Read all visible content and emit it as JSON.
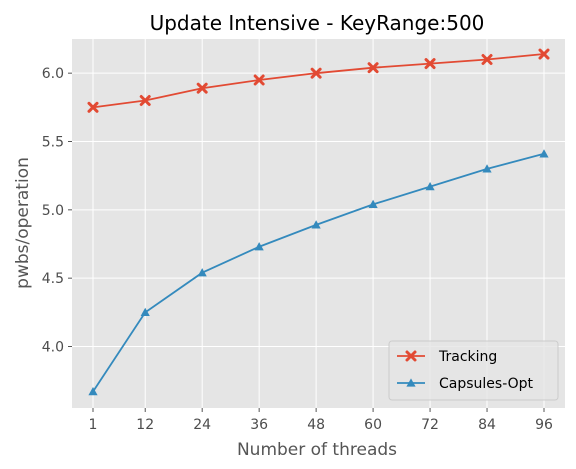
{
  "chart_data": {
    "type": "line",
    "title": "Update Intensive - KeyRange:500",
    "xlabel": "Number of threads",
    "ylabel": "pwbs/operation",
    "x": [
      1,
      12,
      24,
      36,
      48,
      60,
      72,
      84,
      96
    ],
    "x_ticks": [
      "1",
      "12",
      "24",
      "36",
      "48",
      "60",
      "72",
      "84",
      "96"
    ],
    "y_ticks": [
      4.0,
      4.5,
      5.0,
      5.5,
      6.0
    ],
    "y_tick_labels": [
      "4.0",
      "4.5",
      "5.0",
      "5.5",
      "6.0"
    ],
    "ylim": [
      3.55,
      6.25
    ],
    "grid": true,
    "legend_position": "bottom-right",
    "series": [
      {
        "name": "Tracking",
        "color": "#E24A33",
        "marker": "x",
        "values": [
          5.75,
          5.8,
          5.89,
          5.95,
          6.0,
          6.04,
          6.07,
          6.1,
          6.14
        ]
      },
      {
        "name": "Capsules-Opt",
        "color": "#348ABD",
        "marker": "triangle",
        "values": [
          3.67,
          4.25,
          4.54,
          4.73,
          4.89,
          5.04,
          5.17,
          5.3,
          5.41
        ]
      }
    ]
  }
}
